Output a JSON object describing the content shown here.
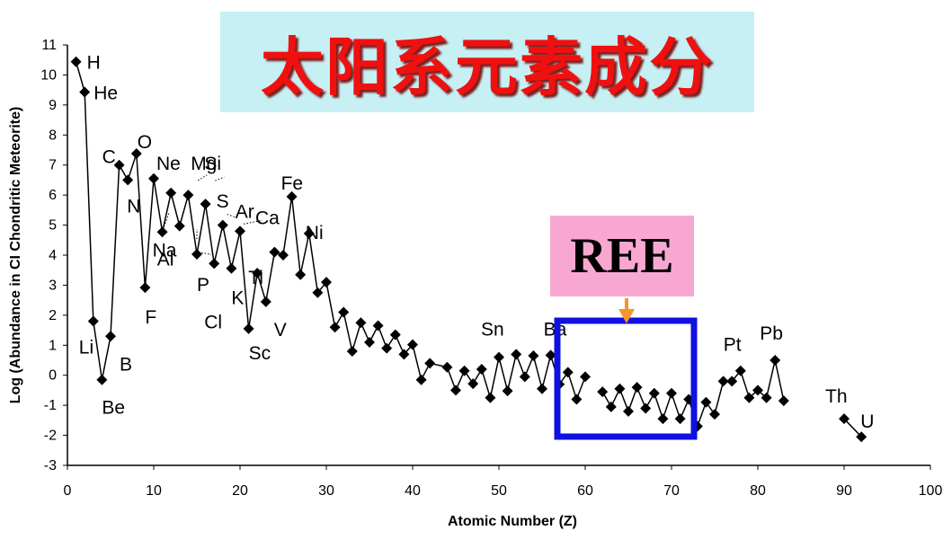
{
  "title": "太阳系元素成分",
  "highlight_label": "REE",
  "colors": {
    "title": "#f01010",
    "title_bg": "#c6f0f4",
    "ree_bg": "#f8a8d0",
    "ree_frame": "#1010e0",
    "arrow": "#f5962a"
  },
  "chart_data": {
    "type": "line",
    "xlabel": "Atomic Number (Z)",
    "ylabel": "Log (Abundance in CI Chondritic Meteorite)",
    "xlim": [
      0,
      100
    ],
    "ylim": [
      -3,
      11
    ],
    "xticks": [
      0,
      10,
      20,
      30,
      40,
      50,
      60,
      70,
      80,
      90,
      100
    ],
    "yticks": [
      -3,
      -2,
      -1,
      0,
      1,
      2,
      3,
      4,
      5,
      6,
      7,
      8,
      9,
      10,
      11
    ],
    "grid": false,
    "segments": [
      [
        [
          1,
          10.44
        ],
        [
          2,
          9.43
        ],
        [
          3,
          1.8
        ],
        [
          4,
          -0.15
        ],
        [
          5,
          1.3
        ],
        [
          6,
          7.0
        ],
        [
          7,
          6.5
        ],
        [
          8,
          7.38
        ],
        [
          9,
          2.92
        ],
        [
          10,
          6.55
        ],
        [
          11,
          4.77
        ],
        [
          12,
          6.07
        ],
        [
          13,
          4.97
        ],
        [
          14,
          6.0
        ],
        [
          15,
          4.03
        ],
        [
          16,
          5.7
        ],
        [
          17,
          3.72
        ],
        [
          18,
          5.0
        ],
        [
          19,
          3.56
        ],
        [
          20,
          4.8
        ],
        [
          21,
          1.55
        ],
        [
          22,
          3.4
        ],
        [
          23,
          2.45
        ],
        [
          24,
          4.1
        ],
        [
          25,
          4.0
        ],
        [
          26,
          5.95
        ],
        [
          27,
          3.35
        ],
        [
          28,
          4.72
        ],
        [
          29,
          2.75
        ],
        [
          30,
          3.1
        ],
        [
          31,
          1.6
        ],
        [
          32,
          2.1
        ],
        [
          33,
          0.8
        ],
        [
          34,
          1.75
        ],
        [
          35,
          1.1
        ],
        [
          36,
          1.65
        ],
        [
          37,
          0.9
        ],
        [
          38,
          1.35
        ],
        [
          39,
          0.7
        ],
        [
          40,
          1.02
        ],
        [
          41,
          -0.15
        ],
        [
          42,
          0.4
        ],
        [
          44,
          0.27
        ],
        [
          45,
          -0.5
        ],
        [
          46,
          0.15
        ],
        [
          47,
          -0.28
        ],
        [
          48,
          0.2
        ],
        [
          49,
          -0.75
        ],
        [
          50,
          0.6
        ],
        [
          51,
          -0.52
        ],
        [
          52,
          0.7
        ],
        [
          53,
          -0.05
        ],
        [
          54,
          0.65
        ],
        [
          55,
          -0.45
        ],
        [
          56,
          0.67
        ],
        [
          57,
          -0.3
        ],
        [
          58,
          0.1
        ],
        [
          59,
          -0.8
        ],
        [
          60,
          -0.05
        ]
      ],
      [
        [
          62,
          -0.55
        ],
        [
          63,
          -1.05
        ],
        [
          64,
          -0.45
        ],
        [
          65,
          -1.2
        ],
        [
          66,
          -0.4
        ],
        [
          67,
          -1.1
        ],
        [
          68,
          -0.6
        ],
        [
          69,
          -1.45
        ],
        [
          70,
          -0.6
        ],
        [
          71,
          -1.45
        ],
        [
          72,
          -0.8
        ],
        [
          73,
          -1.7
        ],
        [
          74,
          -0.9
        ],
        [
          75,
          -1.3
        ],
        [
          76,
          -0.2
        ],
        [
          77,
          -0.2
        ],
        [
          78,
          0.15
        ],
        [
          79,
          -0.75
        ],
        [
          80,
          -0.5
        ],
        [
          81,
          -0.75
        ],
        [
          82,
          0.5
        ],
        [
          83,
          -0.85
        ]
      ],
      [
        [
          90,
          -1.45
        ],
        [
          92,
          -2.05
        ]
      ]
    ],
    "labels": [
      {
        "text": "H",
        "z": 1
      },
      {
        "text": "He",
        "z": 2
      },
      {
        "text": "Li",
        "z": 3
      },
      {
        "text": "Be",
        "z": 4
      },
      {
        "text": "B",
        "z": 5
      },
      {
        "text": "C",
        "z": 6
      },
      {
        "text": "N",
        "z": 7
      },
      {
        "text": "O",
        "z": 8
      },
      {
        "text": "F",
        "z": 9
      },
      {
        "text": "Ne",
        "z": 10
      },
      {
        "text": "Na",
        "z": 11
      },
      {
        "text": "Mg",
        "z": 12
      },
      {
        "text": "Al",
        "z": 13
      },
      {
        "text": "Si",
        "z": 14
      },
      {
        "text": "P",
        "z": 15
      },
      {
        "text": "S",
        "z": 16
      },
      {
        "text": "Cl",
        "z": 17
      },
      {
        "text": "Ar",
        "z": 18
      },
      {
        "text": "K",
        "z": 19
      },
      {
        "text": "Ca",
        "z": 20
      },
      {
        "text": "Sc",
        "z": 21
      },
      {
        "text": "Ti",
        "z": 22
      },
      {
        "text": "V",
        "z": 23
      },
      {
        "text": "Fe",
        "z": 26
      },
      {
        "text": "Ni",
        "z": 28
      },
      {
        "text": "Sn",
        "z": 50
      },
      {
        "text": "Ba",
        "z": 56
      },
      {
        "text": "Pt",
        "z": 78
      },
      {
        "text": "Pb",
        "z": 82
      },
      {
        "text": "Th",
        "z": 90
      },
      {
        "text": "U",
        "z": 92
      }
    ]
  }
}
